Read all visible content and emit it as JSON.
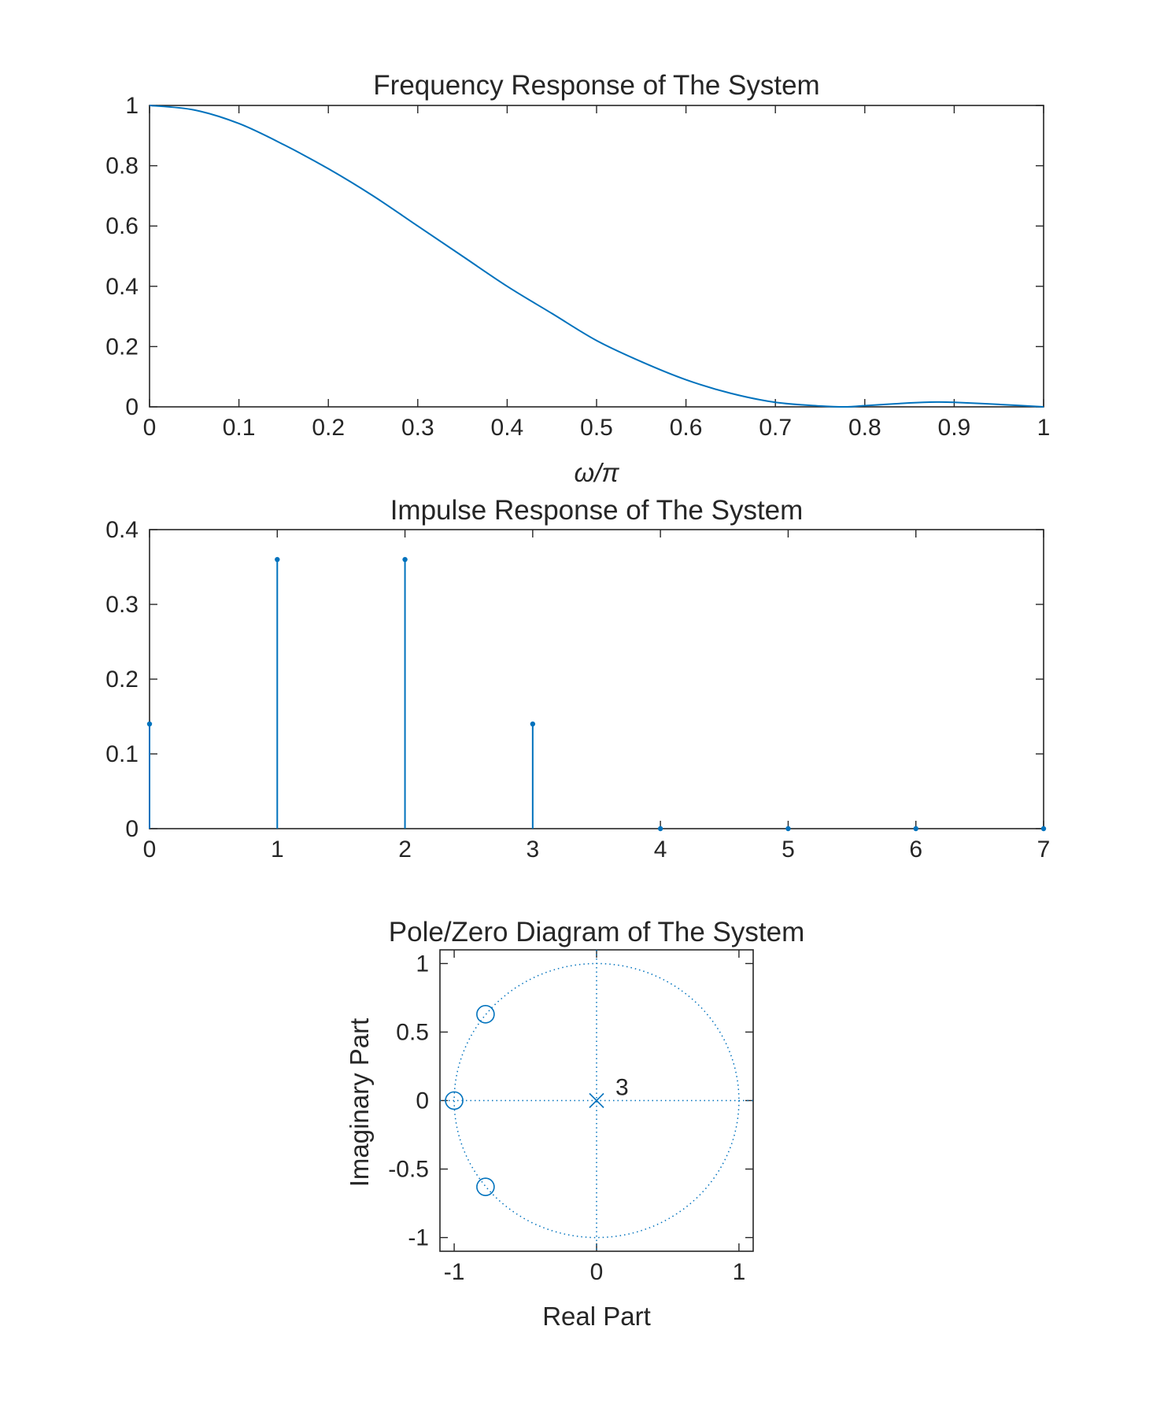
{
  "figure": {
    "colors": {
      "series": "#0072BD",
      "axes": "#262626",
      "background": "#ffffff"
    }
  },
  "chart_data": [
    {
      "type": "line",
      "title": "Frequency Response of The System",
      "xlabel": "ω/π",
      "ylabel": "",
      "xlim": [
        0,
        1
      ],
      "ylim": [
        0,
        1
      ],
      "xticks": [
        "0",
        "0.1",
        "0.2",
        "0.3",
        "0.4",
        "0.5",
        "0.6",
        "0.7",
        "0.8",
        "0.9",
        "1"
      ],
      "yticks": [
        "0",
        "0.2",
        "0.4",
        "0.6",
        "0.8",
        "1"
      ],
      "grid": false,
      "series": [
        {
          "x": [
            0,
            0.05,
            0.1,
            0.15,
            0.2,
            0.25,
            0.3,
            0.35,
            0.4,
            0.45,
            0.5,
            0.55,
            0.6,
            0.65,
            0.7,
            0.75,
            0.78,
            0.8,
            0.85,
            0.88,
            0.9,
            0.95,
            1
          ],
          "y": [
            1,
            0.985,
            0.94,
            0.87,
            0.79,
            0.7,
            0.6,
            0.5,
            0.4,
            0.31,
            0.22,
            0.15,
            0.09,
            0.045,
            0.015,
            0.003,
            0,
            0.004,
            0.013,
            0.016,
            0.015,
            0.008,
            0
          ]
        }
      ]
    },
    {
      "type": "stem",
      "title": "Impulse Response of The System",
      "xlabel": "",
      "ylabel": "",
      "xlim": [
        0,
        7
      ],
      "ylim": [
        0,
        0.4
      ],
      "xticks": [
        "0",
        "1",
        "2",
        "3",
        "4",
        "5",
        "6",
        "7"
      ],
      "yticks": [
        "0",
        "0.1",
        "0.2",
        "0.3",
        "0.4"
      ],
      "grid": false,
      "series": [
        {
          "x": [
            0,
            1,
            2,
            3,
            4,
            5,
            6,
            7
          ],
          "y": [
            0.14,
            0.36,
            0.36,
            0.14,
            0,
            0,
            0,
            0
          ]
        }
      ]
    },
    {
      "type": "scatter",
      "title": "Pole/Zero Diagram of The System",
      "xlabel": "Real Part",
      "ylabel": "Imaginary Part",
      "xlim": [
        -1.1,
        1.1
      ],
      "ylim": [
        -1.1,
        1.1
      ],
      "xticks": [
        "-1",
        "0",
        "1"
      ],
      "yticks": [
        "-1",
        "-0.5",
        "0",
        "0.5",
        "1"
      ],
      "grid": false,
      "unit_circle": true,
      "zeros": [
        {
          "re": -1,
          "im": 0
        },
        {
          "re": -0.78,
          "im": 0.63
        },
        {
          "re": -0.78,
          "im": -0.63
        }
      ],
      "poles": [
        {
          "re": 0,
          "im": 0,
          "multiplicity_label": "3"
        }
      ]
    }
  ]
}
